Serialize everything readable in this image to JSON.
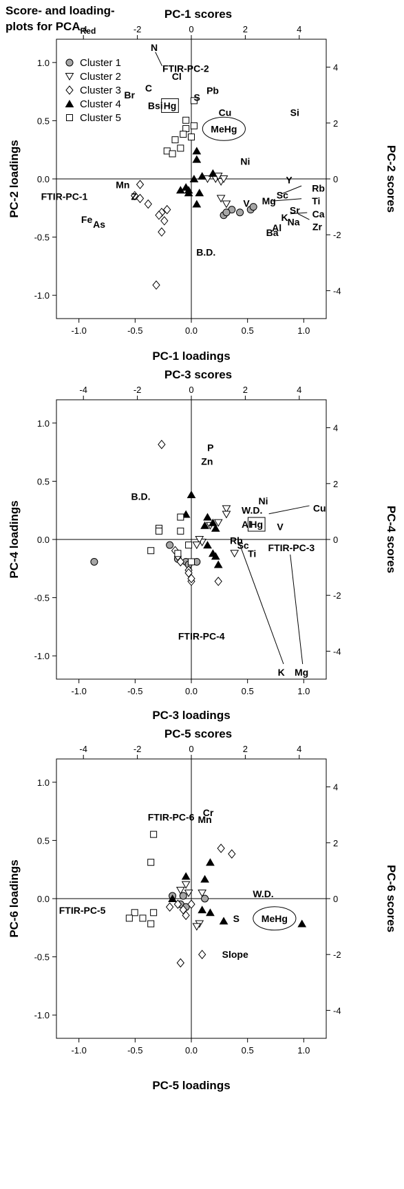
{
  "figure_title": {
    "line1": "Score- and loading-",
    "line2": "plots for PCA",
    "subscript": "Red"
  },
  "chart_data": [
    {
      "type": "scatter",
      "top_axis_label": "PC-1 scores",
      "bottom_axis_label": "PC-1 loadings",
      "left_axis_label": "PC-2 loadings",
      "right_axis_label": "PC-2 scores",
      "xlim": [
        -1.2,
        1.2
      ],
      "ylim": [
        -1.2,
        1.2
      ],
      "score_xlim": [
        -5,
        5
      ],
      "score_ylim": [
        -5,
        5
      ],
      "bottom_ticks": [
        "-1.0",
        "-0.5",
        "0.0",
        "0.5",
        "1.0"
      ],
      "left_ticks": [
        "-1.0",
        "-0.5",
        "0.0",
        "0.5",
        "1.0"
      ],
      "top_ticks": [
        "-4",
        "-2",
        "0",
        "2",
        "4"
      ],
      "right_ticks": [
        "-4",
        "-2",
        "0",
        "2",
        "4"
      ],
      "legend": {
        "placement": "top-left",
        "entries": [
          {
            "label": "Cluster 1",
            "marker": "circle-gray"
          },
          {
            "label": "Cluster 2",
            "marker": "triangle-down-open"
          },
          {
            "label": "Cluster 3",
            "marker": "diamond-open"
          },
          {
            "label": "Cluster 4",
            "marker": "triangle-up-filled"
          },
          {
            "label": "Cluster 5",
            "marker": "square-open"
          }
        ]
      },
      "loadings": [
        {
          "label": "N",
          "x": -0.33,
          "y": 1.13
        },
        {
          "label": "FTIR-PC-2",
          "x": -0.05,
          "y": 0.95
        },
        {
          "label": "Cl",
          "x": -0.13,
          "y": 0.88
        },
        {
          "label": "C",
          "x": -0.38,
          "y": 0.78
        },
        {
          "label": "Br",
          "x": -0.55,
          "y": 0.72
        },
        {
          "label": "Pb",
          "x": 0.19,
          "y": 0.76
        },
        {
          "label": "S",
          "x": 0.05,
          "y": 0.7
        },
        {
          "label": "Bsi",
          "x": -0.32,
          "y": 0.63
        },
        {
          "label": "Hg",
          "x": -0.19,
          "y": 0.63,
          "box": "rect"
        },
        {
          "label": "Cu",
          "x": 0.3,
          "y": 0.57
        },
        {
          "label": "Si",
          "x": 0.92,
          "y": 0.57
        },
        {
          "label": "MeHg",
          "x": 0.29,
          "y": 0.43,
          "box": "ellipse"
        },
        {
          "label": "Ni",
          "x": 0.48,
          "y": 0.15
        },
        {
          "label": "Y",
          "x": 0.87,
          "y": -0.01
        },
        {
          "label": "Mn",
          "x": -0.61,
          "y": -0.05
        },
        {
          "label": "Rb",
          "x": 1.13,
          "y": -0.08
        },
        {
          "label": "Sc",
          "x": 0.81,
          "y": -0.14
        },
        {
          "label": "FTIR-PC-1",
          "x": -1.13,
          "y": -0.15
        },
        {
          "label": "Z",
          "x": -0.51,
          "y": -0.15
        },
        {
          "label": "Mg",
          "x": 0.69,
          "y": -0.19
        },
        {
          "label": "Ti",
          "x": 1.11,
          "y": -0.19
        },
        {
          "label": "V",
          "x": 0.49,
          "y": -0.21
        },
        {
          "label": "Sr",
          "x": 0.92,
          "y": -0.27
        },
        {
          "label": "Ca",
          "x": 1.13,
          "y": -0.3
        },
        {
          "label": "K",
          "x": 0.83,
          "y": -0.33
        },
        {
          "label": "Fe",
          "x": -0.93,
          "y": -0.35
        },
        {
          "label": "As",
          "x": -0.82,
          "y": -0.39
        },
        {
          "label": "Na",
          "x": 0.91,
          "y": -0.37
        },
        {
          "label": "Zr",
          "x": 1.12,
          "y": -0.41
        },
        {
          "label": "Al",
          "x": 0.76,
          "y": -0.42
        },
        {
          "label": "Ba",
          "x": 0.72,
          "y": -0.46
        },
        {
          "label": "B.D.",
          "x": 0.13,
          "y": -0.63
        }
      ],
      "leaders": [
        {
          "x1": -0.32,
          "y1": 1.09,
          "x2": -0.26,
          "y2": 0.97
        },
        {
          "x1": 0.98,
          "y1": -0.06,
          "x2": 0.8,
          "y2": -0.13
        },
        {
          "x1": 0.98,
          "y1": -0.17,
          "x2": 0.72,
          "y2": -0.19
        },
        {
          "x1": 1.03,
          "y1": -0.29,
          "x2": 0.88,
          "y2": -0.3
        },
        {
          "x1": 1.05,
          "y1": -0.35,
          "x2": 0.95,
          "y2": -0.3
        }
      ],
      "series": [
        {
          "name": "Cluster 1",
          "marker": "circle-gray",
          "points": [
            [
              1.2,
              -1.3
            ],
            [
              1.5,
              -1.1
            ],
            [
              1.8,
              -1.2
            ],
            [
              2.2,
              -1.1
            ],
            [
              1.3,
              -1.2
            ],
            [
              2.3,
              -1.0
            ]
          ]
        },
        {
          "name": "Cluster 2",
          "marker": "triangle-down-open",
          "points": [
            [
              0.9,
              0.0
            ],
            [
              1.1,
              -0.1
            ],
            [
              1.2,
              0.0
            ],
            [
              1.1,
              -0.7
            ],
            [
              1.3,
              -0.9
            ],
            [
              0.6,
              0.0
            ],
            [
              1.0,
              0.1
            ]
          ]
        },
        {
          "name": "Cluster 3",
          "marker": "diamond-open",
          "points": [
            [
              -1.9,
              -0.2
            ],
            [
              -1.9,
              -0.7
            ],
            [
              -1.6,
              -0.9
            ],
            [
              -1.1,
              -1.2
            ],
            [
              -1.0,
              -1.5
            ],
            [
              -1.2,
              -1.3
            ],
            [
              -0.9,
              -1.1
            ],
            [
              -1.1,
              -1.9
            ],
            [
              -1.3,
              -3.8
            ],
            [
              -2.1,
              -0.6
            ]
          ]
        },
        {
          "name": "Cluster 4",
          "marker": "triangle-up-filled",
          "points": [
            [
              -0.4,
              -0.4
            ],
            [
              -0.1,
              -0.5
            ],
            [
              -0.2,
              -0.3
            ],
            [
              0.1,
              0.0
            ],
            [
              0.2,
              1.0
            ],
            [
              0.2,
              0.7
            ],
            [
              0.8,
              0.2
            ],
            [
              0.4,
              0.1
            ],
            [
              0.3,
              -0.5
            ],
            [
              -0.1,
              -0.4
            ],
            [
              0.2,
              -0.9
            ]
          ]
        },
        {
          "name": "Cluster 5",
          "marker": "square-open",
          "points": [
            [
              -0.9,
              1.0
            ],
            [
              -0.6,
              1.4
            ],
            [
              -0.4,
              1.1
            ],
            [
              -0.2,
              2.1
            ],
            [
              -0.2,
              1.8
            ],
            [
              0.1,
              2.8
            ],
            [
              0.0,
              1.5
            ],
            [
              0.1,
              1.9
            ],
            [
              -0.7,
              0.9
            ],
            [
              -0.3,
              1.6
            ]
          ]
        }
      ]
    },
    {
      "type": "scatter",
      "top_axis_label": "PC-3 scores",
      "bottom_axis_label": "PC-3 loadings",
      "left_axis_label": "PC-4 loadings",
      "right_axis_label": "PC-4 scores",
      "xlim": [
        -1.2,
        1.2
      ],
      "ylim": [
        -1.2,
        1.2
      ],
      "score_xlim": [
        -5,
        5
      ],
      "score_ylim": [
        -5,
        5
      ],
      "bottom_ticks": [
        "-1.0",
        "-0.5",
        "0.0",
        "0.5",
        "1.0"
      ],
      "left_ticks": [
        "-1.0",
        "-0.5",
        "0.0",
        "0.5",
        "1.0"
      ],
      "top_ticks": [
        "-4",
        "-2",
        "0",
        "2",
        "4"
      ],
      "right_ticks": [
        "-4",
        "-2",
        "0",
        "2",
        "4"
      ],
      "loadings": [
        {
          "label": "P",
          "x": 0.17,
          "y": 0.79
        },
        {
          "label": "Zn",
          "x": 0.14,
          "y": 0.67
        },
        {
          "label": "B.D.",
          "x": -0.45,
          "y": 0.37
        },
        {
          "label": "Ni",
          "x": 0.64,
          "y": 0.33
        },
        {
          "label": "W.D.",
          "x": 0.54,
          "y": 0.25
        },
        {
          "label": "Cu",
          "x": 1.14,
          "y": 0.27
        },
        {
          "label": "Al",
          "x": 0.49,
          "y": 0.13
        },
        {
          "label": "Hg",
          "x": 0.58,
          "y": 0.13,
          "box": "rect"
        },
        {
          "label": "V",
          "x": 0.79,
          "y": 0.11
        },
        {
          "label": "Rb",
          "x": 0.4,
          "y": -0.01
        },
        {
          "label": "Sc",
          "x": 0.46,
          "y": -0.05
        },
        {
          "label": "Ti",
          "x": 0.54,
          "y": -0.12
        },
        {
          "label": "FTIR-PC-3",
          "x": 0.89,
          "y": -0.07
        },
        {
          "label": "FTIR-PC-4",
          "x": 0.09,
          "y": -0.83
        },
        {
          "label": "K",
          "x": 0.8,
          "y": -1.14
        },
        {
          "label": "Mg",
          "x": 0.98,
          "y": -1.14
        }
      ],
      "leaders": [
        {
          "x1": 0.69,
          "y1": 0.22,
          "x2": 1.05,
          "y2": 0.29
        },
        {
          "x1": 0.43,
          "y1": -0.04,
          "x2": 0.82,
          "y2": -1.07
        },
        {
          "x1": 0.88,
          "y1": -0.13,
          "x2": 0.99,
          "y2": -1.07
        }
      ],
      "series": [
        {
          "name": "Cluster 1",
          "marker": "circle-gray",
          "points": [
            [
              -3.6,
              -0.8
            ],
            [
              -0.8,
              -0.2
            ],
            [
              -0.2,
              -0.8
            ],
            [
              -0.5,
              -0.7
            ],
            [
              -0.1,
              -0.9
            ],
            [
              0.2,
              -0.8
            ]
          ]
        },
        {
          "name": "Cluster 2",
          "marker": "triangle-down-open",
          "points": [
            [
              1.3,
              1.1
            ],
            [
              1.3,
              0.9
            ],
            [
              1.0,
              0.6
            ],
            [
              0.7,
              0.5
            ],
            [
              0.4,
              -0.1
            ],
            [
              0.3,
              0.0
            ],
            [
              1.6,
              -0.5
            ],
            [
              0.2,
              -0.2
            ]
          ]
        },
        {
          "name": "Cluster 3",
          "marker": "diamond-open",
          "points": [
            [
              -1.1,
              3.4
            ],
            [
              -0.6,
              -0.4
            ],
            [
              -0.5,
              -0.6
            ],
            [
              -0.4,
              -0.8
            ],
            [
              -0.1,
              -1.1
            ],
            [
              -0.1,
              -1.2
            ],
            [
              0.0,
              -1.5
            ],
            [
              0.0,
              -1.4
            ],
            [
              1.0,
              -1.5
            ]
          ]
        },
        {
          "name": "Cluster 4",
          "marker": "triangle-up-filled",
          "points": [
            [
              0.0,
              1.6
            ],
            [
              -0.2,
              0.9
            ],
            [
              0.6,
              0.8
            ],
            [
              0.8,
              0.6
            ],
            [
              0.5,
              0.5
            ],
            [
              0.9,
              0.4
            ],
            [
              0.6,
              -0.2
            ],
            [
              0.8,
              -0.5
            ],
            [
              0.9,
              -0.6
            ],
            [
              1.0,
              -0.9
            ]
          ]
        },
        {
          "name": "Cluster 5",
          "marker": "square-open",
          "points": [
            [
              -1.2,
              0.4
            ],
            [
              -1.2,
              0.3
            ],
            [
              -0.4,
              0.8
            ],
            [
              -0.4,
              0.3
            ],
            [
              -0.1,
              -0.2
            ],
            [
              -1.5,
              -0.4
            ],
            [
              -0.5,
              -0.5
            ],
            [
              0.0,
              -0.8
            ]
          ]
        }
      ]
    },
    {
      "type": "scatter",
      "top_axis_label": "PC-5 scores",
      "bottom_axis_label": "PC-5 loadings",
      "left_axis_label": "PC-6 loadings",
      "right_axis_label": "PC-6 scores",
      "xlim": [
        -1.2,
        1.2
      ],
      "ylim": [
        -1.2,
        1.2
      ],
      "score_xlim": [
        -5,
        5
      ],
      "score_ylim": [
        -5,
        5
      ],
      "bottom_ticks": [
        "-1.0",
        "-0.5",
        "0.0",
        "0.5",
        "1.0"
      ],
      "left_ticks": [
        "-1.0",
        "-0.5",
        "0.0",
        "0.5",
        "1.0"
      ],
      "top_ticks": [
        "-4",
        "-2",
        "0",
        "2",
        "4"
      ],
      "right_ticks": [
        "-4",
        "-2",
        "0",
        "2",
        "4"
      ],
      "loadings": [
        {
          "label": "Cr",
          "x": 0.15,
          "y": 0.74
        },
        {
          "label": "FTIR-PC-6",
          "x": -0.18,
          "y": 0.7
        },
        {
          "label": "Mn",
          "x": 0.12,
          "y": 0.68
        },
        {
          "label": "W.D.",
          "x": 0.64,
          "y": 0.04
        },
        {
          "label": "FTIR-PC-5",
          "x": -0.97,
          "y": -0.1
        },
        {
          "label": "S",
          "x": 0.4,
          "y": -0.17
        },
        {
          "label": "MeHg",
          "x": 0.74,
          "y": -0.17,
          "box": "ellipse"
        },
        {
          "label": "Slope",
          "x": 0.39,
          "y": -0.48
        }
      ],
      "series": [
        {
          "name": "Cluster 1",
          "marker": "circle-gray",
          "points": [
            [
              -0.7,
              0.1
            ],
            [
              -0.3,
              0.1
            ],
            [
              0.5,
              0.0
            ],
            [
              -0.4,
              -0.2
            ],
            [
              -0.2,
              -0.3
            ]
          ]
        },
        {
          "name": "Cluster 2",
          "marker": "triangle-down-open",
          "points": [
            [
              -0.2,
              0.5
            ],
            [
              -0.4,
              0.3
            ],
            [
              -0.1,
              0.2
            ],
            [
              0.4,
              0.2
            ],
            [
              0.3,
              -0.9
            ],
            [
              0.2,
              -1.0
            ]
          ]
        },
        {
          "name": "Cluster 3",
          "marker": "diamond-open",
          "points": [
            [
              1.1,
              1.8
            ],
            [
              1.5,
              1.6
            ],
            [
              -0.8,
              -0.3
            ],
            [
              -0.5,
              -0.2
            ],
            [
              -0.3,
              -0.4
            ],
            [
              -0.2,
              -0.6
            ],
            [
              0.0,
              -0.2
            ],
            [
              -0.4,
              -2.3
            ],
            [
              0.4,
              -2.0
            ]
          ]
        },
        {
          "name": "Cluster 4",
          "marker": "triangle-up-filled",
          "points": [
            [
              -0.2,
              0.8
            ],
            [
              0.7,
              1.3
            ],
            [
              0.5,
              0.7
            ],
            [
              -0.7,
              0.0
            ],
            [
              0.4,
              -0.4
            ],
            [
              0.7,
              -0.5
            ],
            [
              1.2,
              -0.8
            ],
            [
              4.1,
              -0.9
            ]
          ]
        },
        {
          "name": "Cluster 5",
          "marker": "square-open",
          "points": [
            [
              -1.4,
              2.3
            ],
            [
              -1.5,
              1.3
            ],
            [
              -1.4,
              -0.5
            ],
            [
              -2.1,
              -0.5
            ],
            [
              -1.8,
              -0.7
            ],
            [
              -2.3,
              -0.7
            ],
            [
              -1.5,
              -0.9
            ]
          ]
        }
      ]
    }
  ]
}
